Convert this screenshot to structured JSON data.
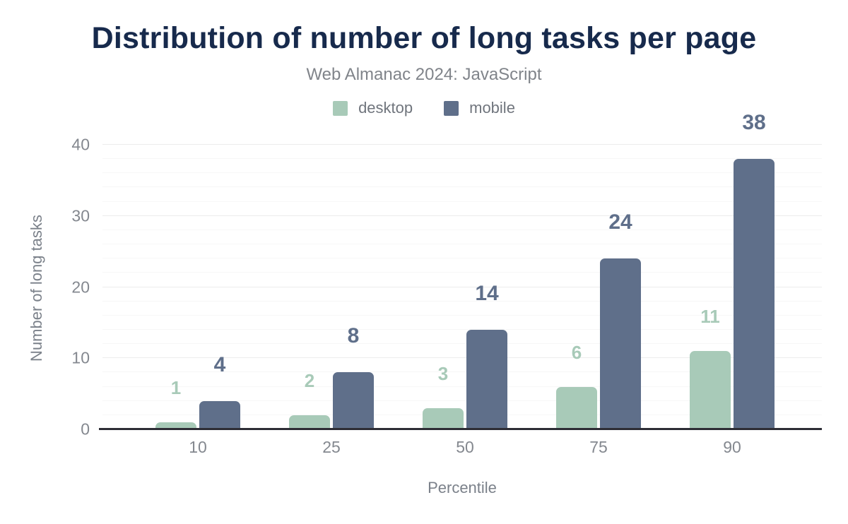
{
  "chart_data": {
    "type": "bar",
    "title": "Distribution of number of long tasks per page",
    "subtitle": "Web Almanac 2024: JavaScript",
    "xlabel": "Percentile",
    "ylabel": "Number of long tasks",
    "categories": [
      "10",
      "25",
      "50",
      "75",
      "90"
    ],
    "series": [
      {
        "name": "desktop",
        "color": "#a8cab8",
        "values": [
          1,
          2,
          3,
          6,
          11
        ]
      },
      {
        "name": "mobile",
        "color": "#5f6f8a",
        "values": [
          4,
          8,
          14,
          24,
          38
        ]
      }
    ],
    "y_ticks": [
      0,
      10,
      20,
      30,
      40
    ],
    "ylim": [
      0,
      40
    ],
    "minor_grid_step": 2,
    "major_grid_step": 10,
    "grid": true,
    "legend_position": "top",
    "value_labels_shown": true
  },
  "colors": {
    "title": "#172a4c",
    "subtitle": "#80848a",
    "axis_text": "#84888f",
    "axis_line": "#2d2d35",
    "grid_minor": "#f7f7f7",
    "grid_major": "#ececec",
    "background": "#ffffff"
  }
}
